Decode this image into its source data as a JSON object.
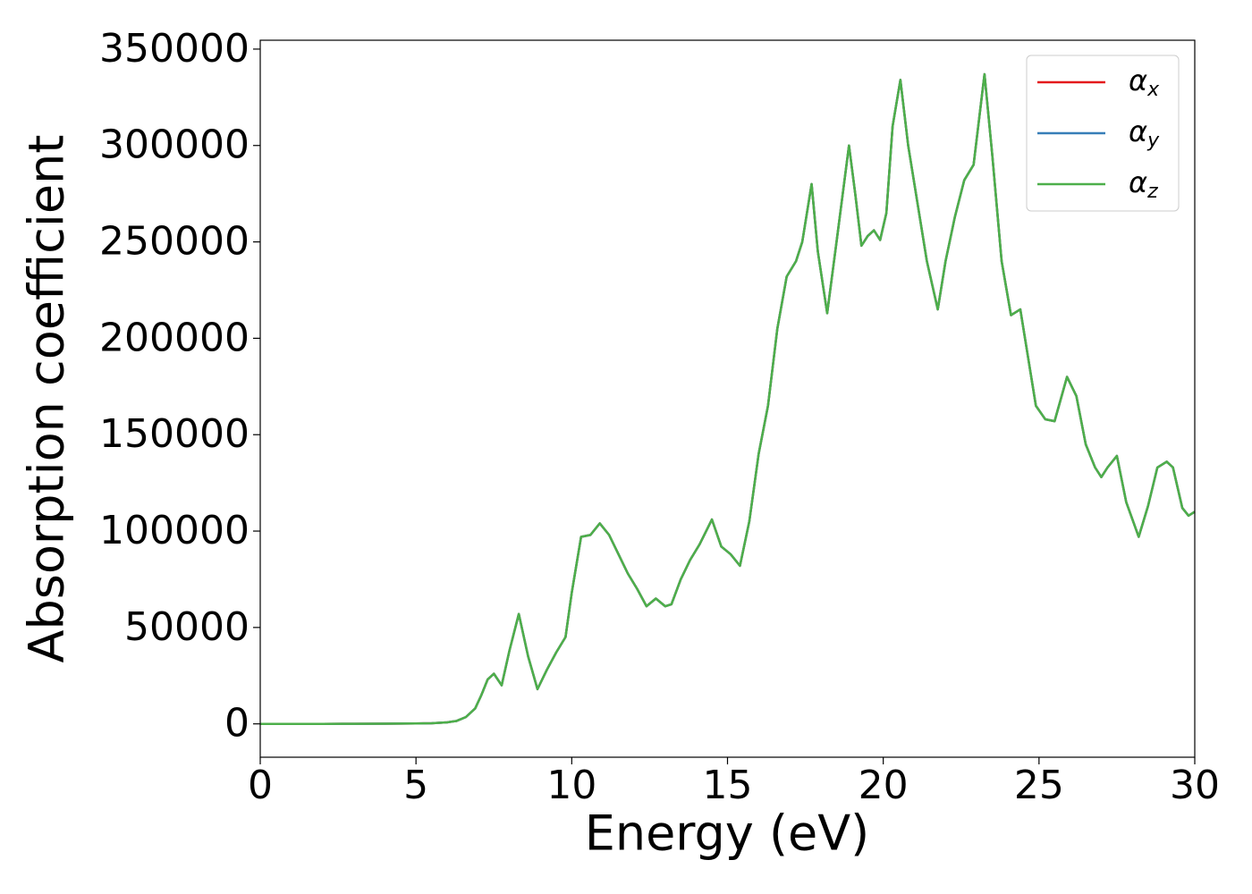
{
  "chart_data": {
    "type": "line",
    "xlabel": "Energy (eV)",
    "ylabel": "Absorption coefficient",
    "x": [
      0,
      1,
      2,
      3,
      4,
      5,
      5.5,
      6,
      6.3,
      6.6,
      6.9,
      7.1,
      7.3,
      7.5,
      7.75,
      8.0,
      8.3,
      8.6,
      8.9,
      9.2,
      9.5,
      9.8,
      10.0,
      10.3,
      10.6,
      10.9,
      11.2,
      11.5,
      11.8,
      12.1,
      12.4,
      12.7,
      13.0,
      13.2,
      13.5,
      13.8,
      14.1,
      14.5,
      14.8,
      15.1,
      15.4,
      15.7,
      16.0,
      16.3,
      16.6,
      16.9,
      17.2,
      17.4,
      17.7,
      17.9,
      18.2,
      18.5,
      18.9,
      19.1,
      19.3,
      19.5,
      19.7,
      19.9,
      20.1,
      20.3,
      20.55,
      20.8,
      21.1,
      21.4,
      21.75,
      22.0,
      22.3,
      22.6,
      22.9,
      23.25,
      23.5,
      23.8,
      24.1,
      24.4,
      24.6,
      24.9,
      25.2,
      25.5,
      25.9,
      26.2,
      26.5,
      26.8,
      27.0,
      27.2,
      27.5,
      27.8,
      28.2,
      28.5,
      28.8,
      29.1,
      29.3,
      29.6,
      29.8,
      30.0
    ],
    "series": [
      {
        "name": "αx",
        "color": "#e41a1c",
        "values": [
          0,
          0,
          0,
          50,
          100,
          200,
          300,
          800,
          1500,
          3500,
          8000,
          15000,
          23000,
          26000,
          20000,
          38000,
          57000,
          35000,
          18000,
          28000,
          37000,
          45000,
          68000,
          97000,
          98000,
          104000,
          98000,
          88000,
          78000,
          70000,
          61000,
          65000,
          61000,
          62000,
          75000,
          85000,
          93000,
          106000,
          92000,
          88000,
          82000,
          105000,
          140000,
          165000,
          205000,
          232000,
          240000,
          250000,
          280000,
          245000,
          213000,
          250000,
          300000,
          275000,
          248000,
          253000,
          256000,
          251000,
          265000,
          310000,
          334000,
          300000,
          270000,
          240000,
          215000,
          240000,
          263000,
          282000,
          290000,
          337000,
          295000,
          240000,
          212000,
          215000,
          195000,
          165000,
          158000,
          157000,
          180000,
          170000,
          145000,
          133000,
          128000,
          133000,
          139000,
          115000,
          97000,
          113000,
          133000,
          136000,
          133000,
          112000,
          108000,
          110000
        ]
      },
      {
        "name": "αy",
        "color": "#377eb8",
        "values": [
          0,
          0,
          0,
          50,
          100,
          200,
          300,
          800,
          1500,
          3500,
          8000,
          15000,
          23000,
          26000,
          20000,
          38000,
          57000,
          35000,
          18000,
          28000,
          37000,
          45000,
          68000,
          97000,
          98000,
          104000,
          98000,
          88000,
          78000,
          70000,
          61000,
          65000,
          61000,
          62000,
          75000,
          85000,
          93000,
          106000,
          92000,
          88000,
          82000,
          105000,
          140000,
          165000,
          205000,
          232000,
          240000,
          250000,
          280000,
          245000,
          213000,
          250000,
          300000,
          275000,
          248000,
          253000,
          256000,
          251000,
          265000,
          310000,
          334000,
          300000,
          270000,
          240000,
          215000,
          240000,
          263000,
          282000,
          290000,
          337000,
          295000,
          240000,
          212000,
          215000,
          195000,
          165000,
          158000,
          157000,
          180000,
          170000,
          145000,
          133000,
          128000,
          133000,
          139000,
          115000,
          97000,
          113000,
          133000,
          136000,
          133000,
          112000,
          108000,
          110000
        ]
      },
      {
        "name": "αz",
        "color": "#4daf4a",
        "values": [
          0,
          0,
          0,
          50,
          100,
          200,
          300,
          800,
          1500,
          3500,
          8000,
          15000,
          23000,
          26000,
          20000,
          38000,
          57000,
          35000,
          18000,
          28000,
          37000,
          45000,
          68000,
          97000,
          98000,
          104000,
          98000,
          88000,
          78000,
          70000,
          61000,
          65000,
          61000,
          62000,
          75000,
          85000,
          93000,
          106000,
          92000,
          88000,
          82000,
          105000,
          140000,
          165000,
          205000,
          232000,
          240000,
          250000,
          280000,
          245000,
          213000,
          250000,
          300000,
          275000,
          248000,
          253000,
          256000,
          251000,
          265000,
          310000,
          334000,
          300000,
          270000,
          240000,
          215000,
          240000,
          263000,
          282000,
          290000,
          337000,
          295000,
          240000,
          212000,
          215000,
          195000,
          165000,
          158000,
          157000,
          180000,
          170000,
          145000,
          133000,
          128000,
          133000,
          139000,
          115000,
          97000,
          113000,
          133000,
          136000,
          133000,
          112000,
          108000,
          110000
        ]
      }
    ],
    "xlim": [
      0,
      30
    ],
    "xticks": [
      0,
      5,
      10,
      15,
      20,
      25,
      30
    ],
    "ylim": [
      -17300,
      354600
    ],
    "yticks": [
      0,
      50000,
      100000,
      150000,
      200000,
      250000,
      300000,
      350000
    ],
    "grid": false,
    "legend": "upper right"
  }
}
